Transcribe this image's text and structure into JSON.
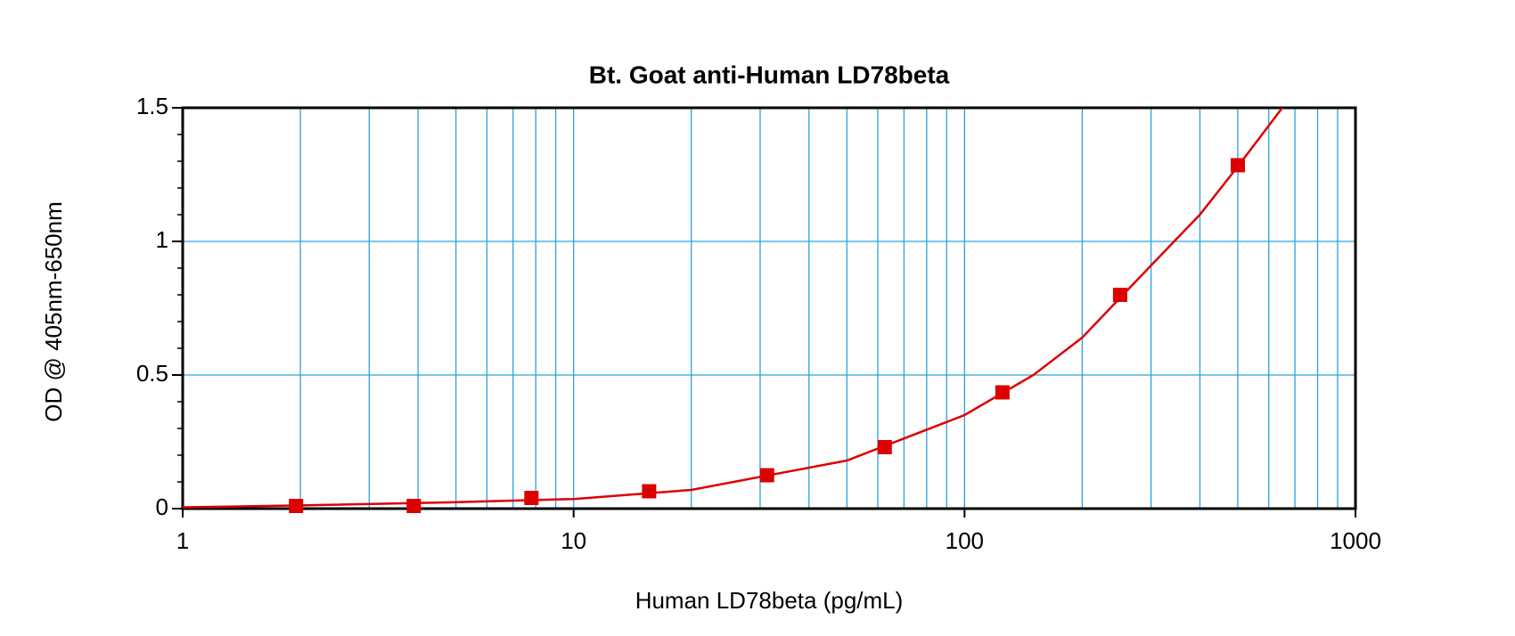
{
  "chart_data": {
    "type": "scatter",
    "title": "Bt. Goat anti-Human LD78beta",
    "x_label": "Human LD78beta (pg/mL)",
    "y_label": "OD @ 405nm-650nm",
    "x_log": true,
    "xlim": [
      1,
      1000
    ],
    "ylim": [
      0,
      1.5
    ],
    "xticks": [
      1,
      10,
      100,
      1000
    ],
    "yticks": [
      0,
      0.5,
      1,
      1.5
    ],
    "xgrid": [
      2,
      3,
      4,
      5,
      6,
      7,
      8,
      9,
      10,
      20,
      30,
      40,
      50,
      60,
      70,
      80,
      90,
      100,
      200,
      300,
      400,
      500,
      600,
      700,
      800,
      900
    ],
    "yminor": [
      0.1,
      0.2,
      0.3,
      0.4,
      0.6,
      0.7,
      0.8,
      0.9,
      1.1,
      1.2,
      1.3,
      1.4
    ],
    "grid": true,
    "grid_color": "#29a3e0",
    "color": "#dd0000",
    "x": [
      1.95,
      3.9,
      7.8,
      15.6,
      31.25,
      62.5,
      125,
      250,
      500
    ],
    "values": [
      0.01,
      0.01,
      0.04,
      0.065,
      0.125,
      0.23,
      0.435,
      0.8,
      1.285
    ],
    "fit": {
      "x": [
        1,
        2,
        5,
        10,
        20,
        50,
        100,
        150,
        200,
        300,
        400,
        500,
        650
      ],
      "values": [
        0.005,
        0.012,
        0.024,
        0.036,
        0.07,
        0.18,
        0.35,
        0.5,
        0.64,
        0.91,
        1.1,
        1.28,
        1.5
      ]
    }
  }
}
